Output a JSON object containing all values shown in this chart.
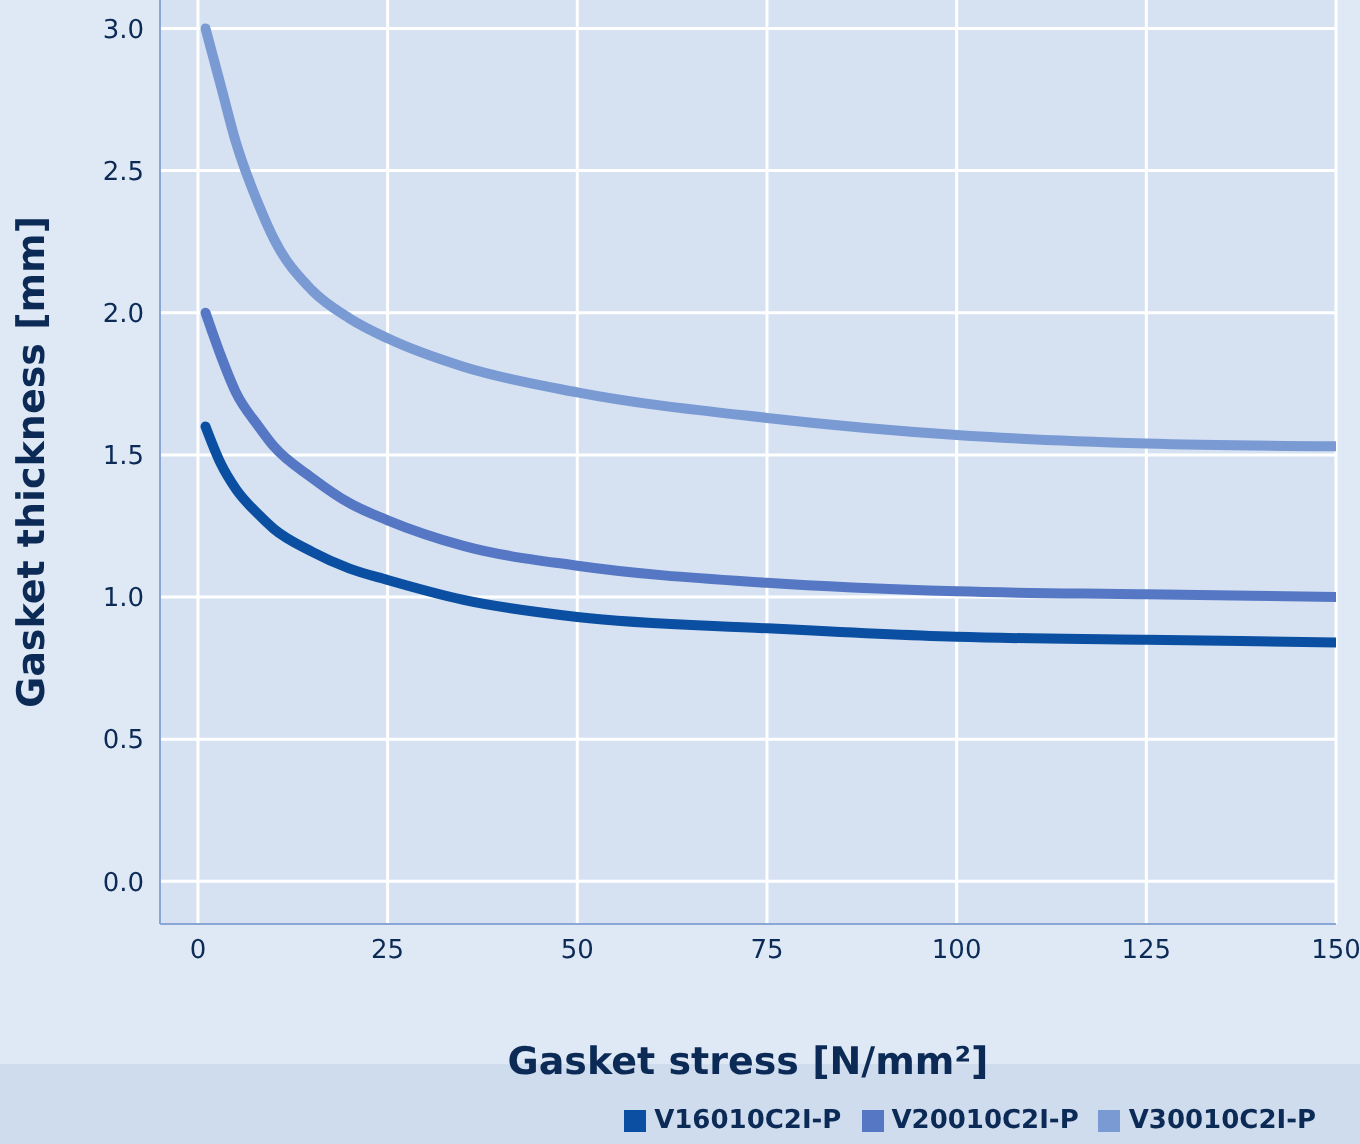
{
  "chart_data": {
    "type": "line",
    "xlabel": "Gasket stress [N/mm²]",
    "ylabel": "Gasket thickness [mm]",
    "x": [
      1,
      3,
      5,
      8,
      10,
      15,
      20,
      25,
      35,
      50,
      75,
      100,
      125,
      150
    ],
    "series": [
      {
        "name": "V16010C2I-P",
        "color": "#0b4fa3",
        "values": [
          1.6,
          1.47,
          1.38,
          1.29,
          1.24,
          1.16,
          1.1,
          1.06,
          0.99,
          0.93,
          0.89,
          0.86,
          0.85,
          0.84
        ]
      },
      {
        "name": "V20010C2I-P",
        "color": "#5577c4",
        "values": [
          2.0,
          1.85,
          1.72,
          1.6,
          1.53,
          1.42,
          1.33,
          1.27,
          1.18,
          1.11,
          1.05,
          1.02,
          1.01,
          1.0
        ]
      },
      {
        "name": "V30010C2I-P",
        "color": "#7a9ad4",
        "values": [
          3.0,
          2.8,
          2.6,
          2.38,
          2.26,
          2.08,
          1.98,
          1.91,
          1.81,
          1.72,
          1.63,
          1.57,
          1.54,
          1.53
        ]
      }
    ],
    "xlim": [
      -5,
      150
    ],
    "xticks": [
      0,
      25,
      50,
      75,
      100,
      125,
      150
    ],
    "ylim": [
      -0.15,
      3.1
    ],
    "yticks": [
      {
        "value": 0,
        "label": "0.0"
      },
      {
        "value": 0.5,
        "label": "0.5"
      },
      {
        "value": 1,
        "label": "1.0"
      },
      {
        "value": 1.5,
        "label": "1.5"
      },
      {
        "value": 2,
        "label": "2.0"
      },
      {
        "value": 2.5,
        "label": "2.5"
      },
      {
        "value": 3,
        "label": "3.0"
      }
    ],
    "grid": true,
    "legend": "bottom right",
    "marker": "none",
    "line_style": "solid"
  }
}
